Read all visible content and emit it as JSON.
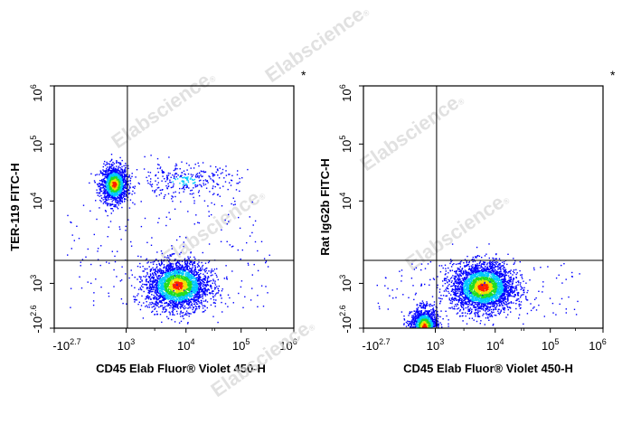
{
  "watermark": "Elabscience",
  "watermark_mark": "®",
  "colors": {
    "density_low": "#0000ff",
    "density_mid1": "#00c8ff",
    "density_mid2": "#22dd22",
    "density_mid3": "#f0e000",
    "density_high": "#ff2000",
    "axis": "#000000",
    "gate": "#000000"
  },
  "chart_data": [
    {
      "type": "scatter",
      "title": "",
      "xlabel": "CD45 Elab Fluor® Violet 450-H",
      "ylabel": "TER-119 FITC-H",
      "x_scale": "biexponential",
      "y_scale": "biexponential",
      "xlim": [
        -501,
        1000000
      ],
      "ylim": [
        -398,
        1000000
      ],
      "x_ticks": [
        {
          "base": "-10",
          "exp": "2.7"
        },
        {
          "base": "10",
          "exp": "3"
        },
        {
          "base": "10",
          "exp": "4"
        },
        {
          "base": "10",
          "exp": "5"
        },
        {
          "base": "10",
          "exp": "6"
        }
      ],
      "y_ticks": [
        {
          "base": "-10",
          "exp": "2.6"
        },
        {
          "base": "10",
          "exp": "3"
        },
        {
          "base": "10",
          "exp": "4"
        },
        {
          "base": "10",
          "exp": "5"
        },
        {
          "base": "10",
          "exp": "6"
        }
      ],
      "gate_x": 1050,
      "gate_y": 1900,
      "marker": "*",
      "populations": [
        {
          "x_center": 95,
          "y_center": 20000,
          "n": 1400
        },
        {
          "x_center": 7200,
          "y_center": 700,
          "n": 2600
        },
        {
          "x_center": 9000,
          "y_center": 23000,
          "n": 320
        }
      ]
    },
    {
      "type": "scatter",
      "title": "",
      "xlabel": "CD45 Elab Fluor® Violet 450-H",
      "ylabel": "Rat IgG2b FITC-H",
      "x_scale": "biexponential",
      "y_scale": "biexponential",
      "xlim": [
        -501,
        1000000
      ],
      "ylim": [
        -398,
        1000000
      ],
      "x_ticks": [
        {
          "base": "-10",
          "exp": "2.7"
        },
        {
          "base": "10",
          "exp": "3"
        },
        {
          "base": "10",
          "exp": "4"
        },
        {
          "base": "10",
          "exp": "5"
        },
        {
          "base": "10",
          "exp": "6"
        }
      ],
      "y_ticks": [
        {
          "base": "-10",
          "exp": "2.6"
        },
        {
          "base": "10",
          "exp": "3"
        },
        {
          "base": "10",
          "exp": "4"
        },
        {
          "base": "10",
          "exp": "5"
        },
        {
          "base": "10",
          "exp": "6"
        }
      ],
      "gate_x": 1050,
      "gate_y": 1900,
      "marker": "*",
      "populations": [
        {
          "x_center": 110,
          "y_center": -150,
          "n": 1500
        },
        {
          "x_center": 6200,
          "y_center": 500,
          "n": 3000
        }
      ]
    }
  ]
}
